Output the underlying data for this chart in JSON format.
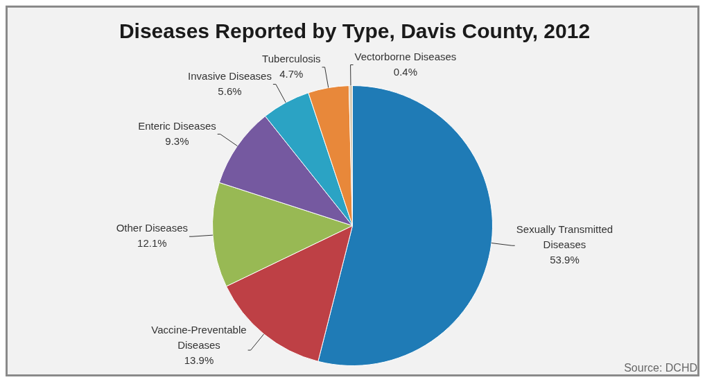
{
  "chart_data": {
    "type": "pie",
    "title": "Diseases Reported by Type, Davis County, 2012",
    "categories": [
      "Sexually Transmitted Diseases",
      "Vaccine-Preventable Diseases",
      "Other Diseases",
      "Enteric Diseases",
      "Invasive Diseases",
      "Tuberculosis",
      "Vectorborne Diseases"
    ],
    "values": [
      53.9,
      13.9,
      12.1,
      9.3,
      5.6,
      4.7,
      0.4
    ],
    "value_labels": [
      "53.9%",
      "13.9%",
      "12.1%",
      "9.3%",
      "5.6%",
      "4.7%",
      "0.4%"
    ],
    "colors": [
      "#1f7bb6",
      "#be4045",
      "#98b954",
      "#7559a0",
      "#2ba3c4",
      "#e8883a",
      "#d8cdb8"
    ],
    "annotations": [
      "Source: DCHD"
    ],
    "legend": false
  }
}
